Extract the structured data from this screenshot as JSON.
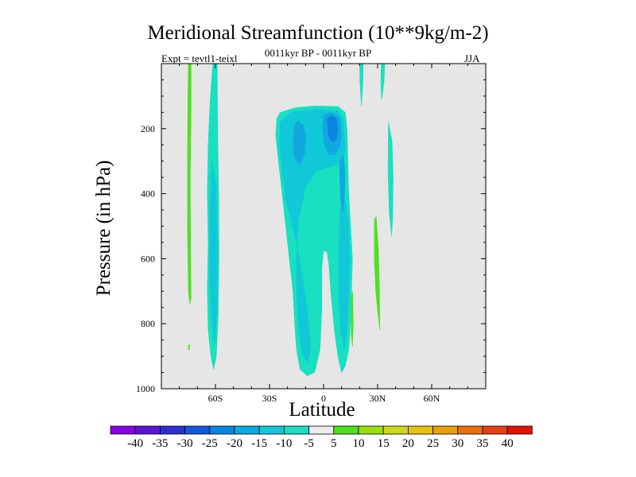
{
  "chart_data": {
    "type": "heatmap",
    "title": "Meridional Streamfunction (10**9kg/m-2)",
    "subtitle_center": "0011kyr BP - 0011kyr BP",
    "subtitle_left": "Expt = tevtl1-teixl",
    "subtitle_right": "JJA",
    "xlabel": "Latitude",
    "ylabel": "Pressure (in hPa)",
    "xlim": [
      -90,
      90
    ],
    "ylim": [
      1000,
      0
    ],
    "x_ticks": [
      {
        "value": -60,
        "label": "60S"
      },
      {
        "value": -30,
        "label": "30S"
      },
      {
        "value": 0,
        "label": "0"
      },
      {
        "value": 30,
        "label": "30N"
      },
      {
        "value": 60,
        "label": "60N"
      }
    ],
    "y_ticks": [
      {
        "value": 200,
        "label": "200"
      },
      {
        "value": 400,
        "label": "400"
      },
      {
        "value": 600,
        "label": "600"
      },
      {
        "value": 800,
        "label": "800"
      },
      {
        "value": 1000,
        "label": "1000"
      }
    ],
    "background_color": "#e6e6e6",
    "colorbar": {
      "labels": [
        "-40",
        "-35",
        "-30",
        "-25",
        "-20",
        "-15",
        "-10",
        "-5",
        "5",
        "10",
        "15",
        "20",
        "25",
        "30",
        "35",
        "40"
      ],
      "colors": [
        "#8a00e6",
        "#5a14d6",
        "#2a30cc",
        "#1058dc",
        "#0a86e0",
        "#10a8e0",
        "#10c8d8",
        "#18e0c0",
        "#ececec",
        "#50e020",
        "#98e010",
        "#d0d818",
        "#e8c010",
        "#e8a010",
        "#e87010",
        "#e84010",
        "#e61200"
      ]
    },
    "regions": [
      {
        "level": -5,
        "color": "#18e0c0",
        "points": [
          [
            -61.5,
            0
          ],
          [
            -63,
            120
          ],
          [
            -64,
            250
          ],
          [
            -64.5,
            400
          ],
          [
            -64,
            550
          ],
          [
            -64.5,
            700
          ],
          [
            -64,
            820
          ],
          [
            -62.5,
            900
          ],
          [
            -61,
            940
          ],
          [
            -59.5,
            900
          ],
          [
            -58.5,
            780
          ],
          [
            -58,
            600
          ],
          [
            -58.2,
            400
          ],
          [
            -58.8,
            200
          ],
          [
            -59,
            0
          ]
        ]
      },
      {
        "level": -5,
        "color": "#18e0c0",
        "points": [
          [
            -26,
            170
          ],
          [
            -24,
            150
          ],
          [
            -15,
            135
          ],
          [
            -4,
            130
          ],
          [
            8,
            132
          ],
          [
            12,
            150
          ],
          [
            13,
            200
          ],
          [
            13.5,
            300
          ],
          [
            14,
            400
          ],
          [
            15,
            500
          ],
          [
            16,
            600
          ],
          [
            15.5,
            700
          ],
          [
            15,
            800
          ],
          [
            14,
            880
          ],
          [
            12,
            930
          ],
          [
            10,
            950
          ],
          [
            8,
            900
          ],
          [
            6,
            820
          ],
          [
            4,
            700
          ],
          [
            3,
            620
          ],
          [
            2,
            580
          ],
          [
            0,
            575
          ],
          [
            -1,
            630
          ],
          [
            -1,
            760
          ],
          [
            -2,
            880
          ],
          [
            -5,
            950
          ],
          [
            -9,
            960
          ],
          [
            -13,
            940
          ],
          [
            -15,
            880
          ],
          [
            -16,
            800
          ],
          [
            -17,
            700
          ],
          [
            -19,
            600
          ],
          [
            -21,
            500
          ],
          [
            -23,
            400
          ],
          [
            -25,
            300
          ],
          [
            -26.5,
            220
          ]
        ]
      },
      {
        "level": -5,
        "color": "#18e0c0",
        "points": [
          [
            20,
            0
          ],
          [
            22,
            0
          ],
          [
            21.8,
            60
          ],
          [
            21,
            130
          ],
          [
            20.2,
            60
          ]
        ]
      },
      {
        "level": -5,
        "color": "#18e0c0",
        "points": [
          [
            32,
            0
          ],
          [
            34,
            0
          ],
          [
            33.5,
            60
          ],
          [
            32.2,
            110
          ],
          [
            31.8,
            60
          ]
        ]
      },
      {
        "level": -5,
        "color": "#18e0c0",
        "points": [
          [
            36,
            180
          ],
          [
            38,
            240
          ],
          [
            38.6,
            350
          ],
          [
            38.4,
            460
          ],
          [
            37.8,
            530
          ],
          [
            36.5,
            460
          ],
          [
            35.8,
            330
          ]
        ]
      },
      {
        "level": -10,
        "color": "#10c8d8",
        "points": [
          [
            -62,
            300
          ],
          [
            -63,
            450
          ],
          [
            -63.3,
            600
          ],
          [
            -62.5,
            760
          ],
          [
            -60.5,
            860
          ],
          [
            -59.2,
            760
          ],
          [
            -59,
            560
          ],
          [
            -59.5,
            380
          ]
        ]
      },
      {
        "level": -10,
        "color": "#10c8d8",
        "points": [
          [
            -24,
            180
          ],
          [
            -18,
            150
          ],
          [
            -5,
            140
          ],
          [
            8,
            145
          ],
          [
            11,
            170
          ],
          [
            12,
            260
          ],
          [
            11,
            300
          ],
          [
            8,
            310
          ],
          [
            2,
            320
          ],
          [
            -4,
            330
          ],
          [
            -10,
            380
          ],
          [
            -14,
            480
          ],
          [
            -15,
            600
          ],
          [
            -15,
            700
          ],
          [
            -14,
            800
          ],
          [
            -12,
            890
          ],
          [
            -9,
            920
          ],
          [
            -7,
            880
          ],
          [
            -9,
            760
          ],
          [
            -12,
            650
          ],
          [
            -15,
            550
          ],
          [
            -18,
            480
          ],
          [
            -21,
            420
          ],
          [
            -23,
            330
          ],
          [
            -24.5,
            250
          ]
        ]
      },
      {
        "level": -10,
        "color": "#10c8d8",
        "points": [
          [
            9,
            450
          ],
          [
            12,
            420
          ],
          [
            14,
            500
          ],
          [
            14.5,
            600
          ],
          [
            14,
            700
          ],
          [
            13,
            820
          ],
          [
            11.5,
            880
          ],
          [
            9.5,
            820
          ],
          [
            8.5,
            720
          ],
          [
            8.5,
            600
          ]
        ]
      },
      {
        "level": -15,
        "color": "#10a8e0",
        "points": [
          [
            -16,
            190
          ],
          [
            -14,
            175
          ],
          [
            -11,
            190
          ],
          [
            -10,
            230
          ],
          [
            -10.5,
            280
          ],
          [
            -13,
            310
          ],
          [
            -16,
            290
          ],
          [
            -17,
            240
          ]
        ]
      },
      {
        "level": -15,
        "color": "#10a8e0",
        "points": [
          [
            0,
            160
          ],
          [
            4,
            150
          ],
          [
            9,
            165
          ],
          [
            10,
            220
          ],
          [
            9,
            260
          ],
          [
            6,
            280
          ],
          [
            3,
            280
          ],
          [
            0.5,
            250
          ],
          [
            -0.5,
            200
          ]
        ]
      },
      {
        "level": -15,
        "color": "#10a8e0",
        "points": [
          [
            9,
            300
          ],
          [
            11,
            280
          ],
          [
            12,
            340
          ],
          [
            11.5,
            420
          ],
          [
            10.5,
            460
          ],
          [
            9.5,
            420
          ],
          [
            9,
            350
          ]
        ]
      },
      {
        "level": -20,
        "color": "#0a86e0",
        "points": [
          [
            2,
            170
          ],
          [
            4,
            160
          ],
          [
            7,
            168
          ],
          [
            8,
            205
          ],
          [
            7,
            235
          ],
          [
            4.5,
            240
          ],
          [
            2.5,
            215
          ]
        ]
      },
      {
        "level": 5,
        "color": "#50e020",
        "points": [
          [
            -75,
            0
          ],
          [
            -73.5,
            0
          ],
          [
            -73.5,
            150
          ],
          [
            -74,
            350
          ],
          [
            -73.8,
            550
          ],
          [
            -73.5,
            720
          ],
          [
            -74.2,
            740
          ],
          [
            -75,
            700
          ],
          [
            -75.5,
            520
          ],
          [
            -75.5,
            300
          ],
          [
            -75.3,
            120
          ]
        ]
      },
      {
        "level": 5,
        "color": "#50e020",
        "points": [
          [
            -75,
            865
          ],
          [
            -74.3,
            865
          ],
          [
            -74.4,
            880
          ],
          [
            -75,
            880
          ]
        ]
      },
      {
        "level": 5,
        "color": "#50e020",
        "points": [
          [
            28.2,
            480
          ],
          [
            29.2,
            470
          ],
          [
            30.3,
            560
          ],
          [
            31,
            690
          ],
          [
            31.2,
            820
          ],
          [
            30,
            760
          ],
          [
            29,
            700
          ],
          [
            28.2,
            600
          ]
        ]
      },
      {
        "level": 5,
        "color": "#50e020",
        "points": [
          [
            15.2,
            720
          ],
          [
            16.2,
            700
          ],
          [
            16.5,
            800
          ],
          [
            16,
            870
          ],
          [
            15.3,
            830
          ]
        ]
      }
    ]
  }
}
